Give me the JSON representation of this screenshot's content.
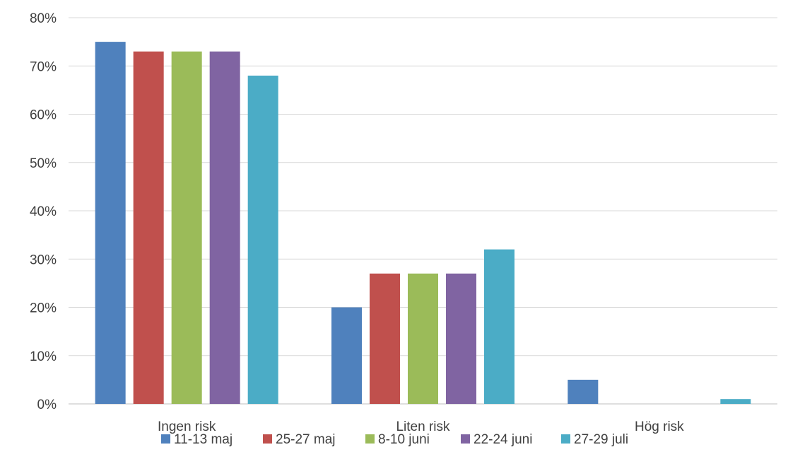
{
  "chart_data": {
    "type": "bar",
    "title": "",
    "xlabel": "",
    "ylabel": "",
    "categories": [
      "Ingen risk",
      "Liten risk",
      "Hög risk"
    ],
    "series": [
      {
        "name": "11-13 maj",
        "color": "#4F81BD",
        "values": [
          0.75,
          0.2,
          0.05
        ]
      },
      {
        "name": "25-27 maj",
        "color": "#C0504D",
        "values": [
          0.73,
          0.27,
          0.0
        ]
      },
      {
        "name": "8-10 juni",
        "color": "#9BBB59",
        "values": [
          0.73,
          0.27,
          0.0
        ]
      },
      {
        "name": "22-24 juni",
        "color": "#8064A2",
        "values": [
          0.73,
          0.27,
          0.0
        ]
      },
      {
        "name": "27-29 juli",
        "color": "#4BACC6",
        "values": [
          0.68,
          0.32,
          0.01
        ]
      }
    ],
    "y_ticks": [
      "0%",
      "10%",
      "20%",
      "30%",
      "40%",
      "50%",
      "60%",
      "70%",
      "80%"
    ],
    "ylim": [
      0,
      0.8
    ],
    "grid": true,
    "legend_position": "bottom"
  }
}
